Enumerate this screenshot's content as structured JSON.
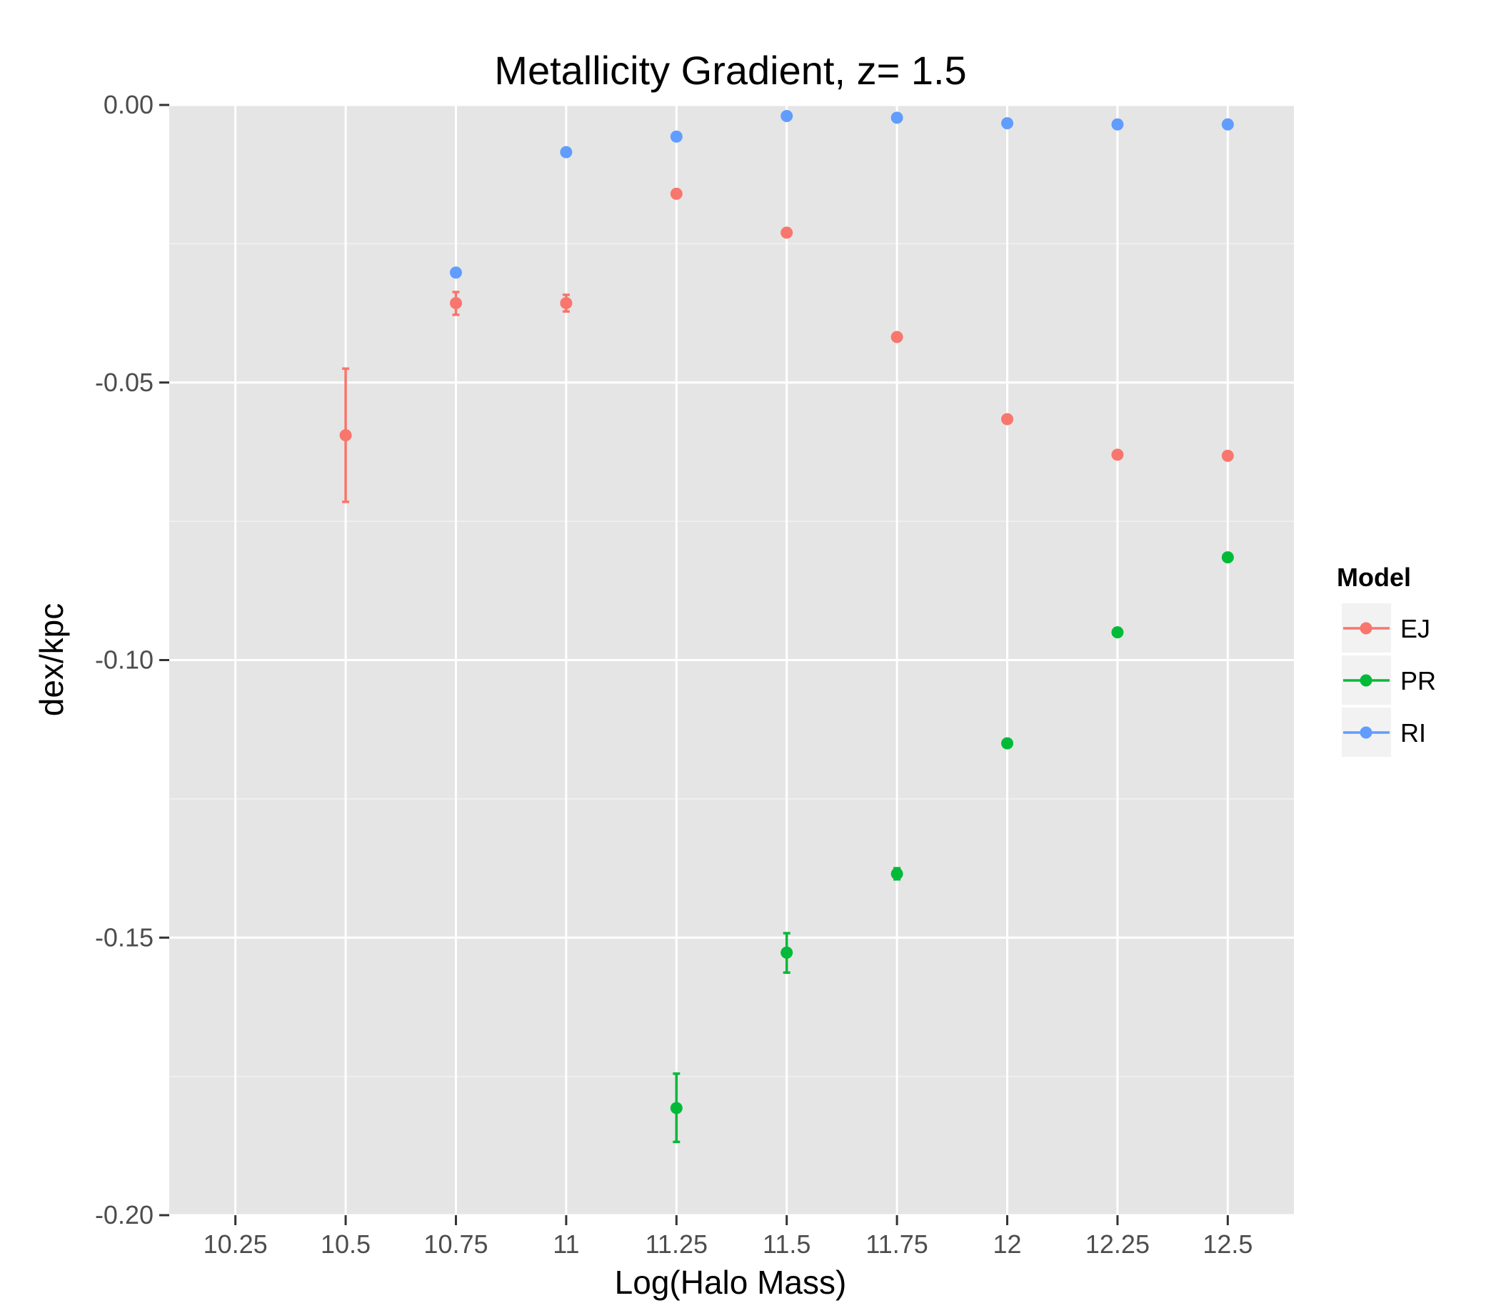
{
  "chart_data": {
    "type": "scatter",
    "title": "Metallicity Gradient, z= 1.5",
    "xlabel": "Log(Halo Mass)",
    "ylabel": "dex/kpc",
    "xlim": [
      10.1,
      12.65
    ],
    "ylim": [
      -0.2,
      0.0
    ],
    "xticks": [
      10.25,
      10.5,
      10.75,
      11,
      11.25,
      11.5,
      11.75,
      12,
      12.25,
      12.5
    ],
    "xtick_labels": [
      "10.25",
      "10.5",
      "10.75",
      "11",
      "11.25",
      "11.5",
      "11.75",
      "12",
      "12.25",
      "12.5"
    ],
    "yticks": [
      0.0,
      -0.05,
      -0.1,
      -0.15,
      -0.2
    ],
    "ytick_labels": [
      "0.00",
      "-0.05",
      "-0.10",
      "-0.15",
      "-0.20"
    ],
    "grid": true,
    "legend": {
      "title": "Model",
      "placement": "right"
    },
    "series": [
      {
        "name": "EJ",
        "color": "#F8766D",
        "points": [
          {
            "x": 10.5,
            "y": -0.0595,
            "ymin": -0.0715,
            "ymax": -0.0475
          },
          {
            "x": 10.75,
            "y": -0.0357,
            "ymin": -0.0378,
            "ymax": -0.0337
          },
          {
            "x": 11.0,
            "y": -0.0357,
            "ymin": -0.0372,
            "ymax": -0.0342
          },
          {
            "x": 11.25,
            "y": -0.016
          },
          {
            "x": 11.5,
            "y": -0.023
          },
          {
            "x": 11.75,
            "y": -0.0418
          },
          {
            "x": 12.0,
            "y": -0.0566
          },
          {
            "x": 12.25,
            "y": -0.063
          },
          {
            "x": 12.5,
            "y": -0.0632
          }
        ]
      },
      {
        "name": "PR",
        "color": "#00BA38",
        "points": [
          {
            "x": 11.25,
            "y": -0.1807,
            "ymin": -0.1868,
            "ymax": -0.1745
          },
          {
            "x": 11.5,
            "y": -0.1527,
            "ymin": -0.1563,
            "ymax": -0.1492
          },
          {
            "x": 11.75,
            "y": -0.1385,
            "ymin": -0.1395,
            "ymax": -0.1375
          },
          {
            "x": 12.0,
            "y": -0.115
          },
          {
            "x": 12.25,
            "y": -0.095
          },
          {
            "x": 12.5,
            "y": -0.0815
          }
        ]
      },
      {
        "name": "RI",
        "color": "#619CFF",
        "points": [
          {
            "x": 10.75,
            "y": -0.0302
          },
          {
            "x": 11.0,
            "y": -0.0085
          },
          {
            "x": 11.25,
            "y": -0.0057
          },
          {
            "x": 11.5,
            "y": -0.002
          },
          {
            "x": 11.75,
            "y": -0.0023
          },
          {
            "x": 12.0,
            "y": -0.0033
          },
          {
            "x": 12.25,
            "y": -0.0035
          },
          {
            "x": 12.5,
            "y": -0.0035
          }
        ]
      }
    ]
  }
}
